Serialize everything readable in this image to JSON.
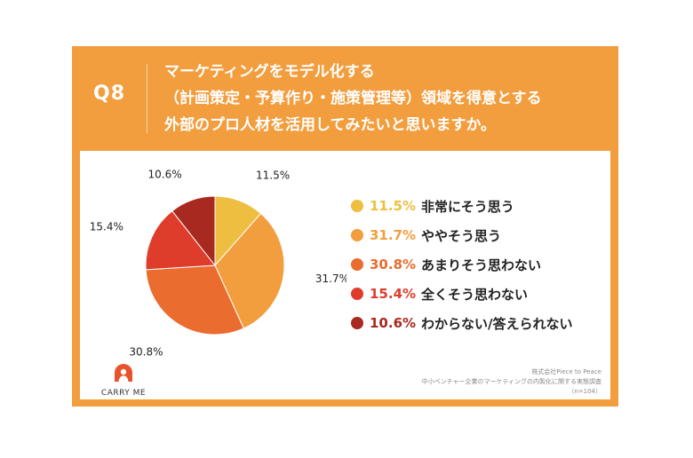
{
  "question": {
    "number": "Q8",
    "lines": [
      "マーケティングをモデル化する",
      "（計画策定・予算作り・施策管理等）領域を得意とする",
      "外部のプロ人材を活用してみたいと思いますか。"
    ]
  },
  "chart_data": {
    "type": "pie",
    "title": "",
    "unit": "%",
    "slices": [
      {
        "label": "非常にそう思う",
        "value": 11.5,
        "value_label": "11.5%",
        "color": "#EDBE3F"
      },
      {
        "label": "ややそう思う",
        "value": 31.7,
        "value_label": "31.7%",
        "color": "#F29E3E"
      },
      {
        "label": "あまりそう思わない",
        "value": 30.8,
        "value_label": "30.8%",
        "color": "#EA6C2F"
      },
      {
        "label": "全くそう思わない",
        "value": 15.4,
        "value_label": "15.4%",
        "color": "#DE3D2C"
      },
      {
        "label": "わからない/答えられない",
        "value": 10.6,
        "value_label": "10.6%",
        "color": "#A8291F"
      }
    ],
    "legend_position": "right"
  },
  "colors": {
    "frame": "#F29E3E",
    "logo": "#E8532B"
  },
  "logo": {
    "text": "CARRY ME",
    "icon": "person-arch-icon"
  },
  "credit": {
    "lines": [
      "株式会社Piece to Peace",
      "中小ベンチャー企業のマーケティングの内製化に関する実態調査",
      "（n=104）"
    ]
  }
}
